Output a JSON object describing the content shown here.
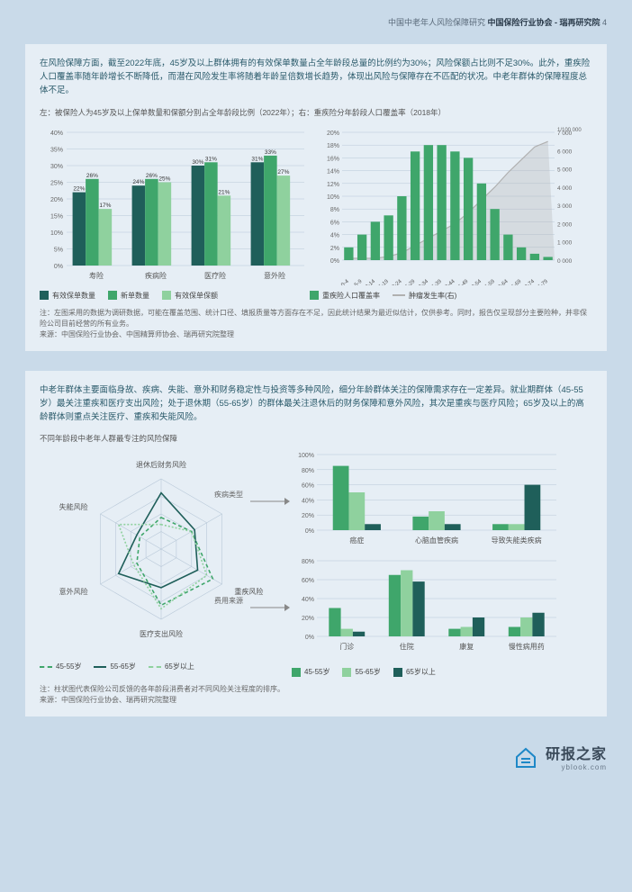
{
  "header": {
    "breadcrumb": "中国中老年人风险保障研究",
    "org": "中国保险行业协会 - 瑞再研究院",
    "pageNo": "4"
  },
  "panel1": {
    "intro": "在风险保障方面，截至2022年底，45岁及以上群体拥有的有效保单数量占全年龄段总量的比例约为30%；风险保额占比则不足30%。此外，重疾险人口覆盖率随年龄增长不断降低，而潜在风险发生率将随着年龄呈倍数增长趋势，体现出风险与保障存在不匹配的状况。中老年群体的保障程度总体不足。",
    "subtitle": "左：被保险人为45岁及以上保单数量和保额分别占全年龄段比例（2022年）；右：重疾险分年龄段人口覆盖率（2018年）",
    "barChart": {
      "type": "grouped-bar",
      "categories": [
        "寿险",
        "疾病险",
        "医疗险",
        "意外险"
      ],
      "series": [
        {
          "name": "有效保单数量",
          "color": "#1f5f5a",
          "values": [
            22,
            24,
            30,
            31
          ]
        },
        {
          "name": "新单数量",
          "color": "#3fa66b",
          "values": [
            26,
            26,
            31,
            33
          ]
        },
        {
          "name": "有效保单保额",
          "color": "#8fd19e",
          "values": [
            17,
            25,
            21,
            27
          ]
        }
      ],
      "ylim": [
        0,
        40
      ],
      "ytick_step": 5,
      "ysuffix": "%",
      "label_fontsize": 7,
      "grid_color": "#b8c8d8",
      "background": "#e6eef5",
      "data_labels_color": "#333",
      "bar_width": 0.22
    },
    "lineBarChart": {
      "type": "bar-with-line",
      "categories": [
        "0-4",
        "5-9",
        "10-14",
        "15-19",
        "20-24",
        "25-29",
        "30-34",
        "35-39",
        "40-44",
        "45-49",
        "50-54",
        "55-59",
        "60-64",
        "65-69",
        "70-74",
        "75-79"
      ],
      "bar": {
        "name": "重疾险人口覆盖率",
        "color": "#3fa66b",
        "values": [
          2,
          4,
          6,
          7,
          10,
          17,
          18,
          18,
          17,
          16,
          12,
          8,
          4,
          2,
          1,
          0.5
        ],
        "axis": "left"
      },
      "line": {
        "name": "肿瘤发生率(右)",
        "color": "#b0b0b0",
        "values": [
          100,
          100,
          100,
          200,
          400,
          800,
          1200,
          1600,
          2000,
          2600,
          3300,
          4000,
          4800,
          5500,
          6200,
          6500
        ],
        "axis": "right",
        "fill_opacity": 0.3
      },
      "y_left": {
        "lim": [
          0,
          20
        ],
        "step": 2,
        "suffix": "%"
      },
      "y_right": {
        "lim": [
          0,
          7000
        ],
        "step": 1000,
        "unit": "1/100 000"
      },
      "grid_color": "#b8c8d8"
    },
    "legend1": [
      "有效保单数量",
      "新单数量",
      "有效保单保额"
    ],
    "legend2": [
      "重疾险人口覆盖率",
      "肿瘤发生率(右)"
    ],
    "note1": "注：左图采用的数据为调研数据，可能在覆盖范围、统计口径、填报质量等方面存在不足，因此统计结果为最近似估计，仅供参考。同时，报告仅呈现部分主要险种，并非保险公司目前经营的所有业务。",
    "note2": "来源：中国保险行业协会、中国精算师协会、瑞再研究院整理"
  },
  "panel2": {
    "intro": "中老年群体主要面临身故、疾病、失能、意外和财务稳定性与投资等多种风险，细分年龄群体关注的保障需求存在一定差异。就业期群体（45-55岁）最关注重疾和医疗支出风险；处于退休期（55-65岁）的群体最关注退休后的财务保障和意外风险，其次是重疾与医疗风险；65岁及以上的高龄群体则重点关注医疗、重疾和失能风险。",
    "subtitle": "不同年龄段中老年人群最专注的风险保障",
    "radar": {
      "type": "radar",
      "axes": [
        "退休后财务风险",
        "疾病类型",
        "重疾风险",
        "医疗支出风险",
        "意外风险",
        "失能风险"
      ],
      "axes_display": [
        "退休后财务风险",
        "",
        "重疾风险",
        "医疗支出风险",
        "意外风险",
        "失能风险"
      ],
      "series": [
        {
          "name": "45-55岁",
          "color": "#3fa66b",
          "dash": "4 3",
          "values": [
            0.45,
            0.5,
            0.85,
            0.8,
            0.4,
            0.35
          ]
        },
        {
          "name": "55-65岁",
          "color": "#1f5f5a",
          "dash": "none",
          "values": [
            0.8,
            0.55,
            0.6,
            0.55,
            0.7,
            0.4
          ]
        },
        {
          "name": "65岁以上",
          "color": "#8fd19e",
          "dash": "2 2",
          "values": [
            0.35,
            0.5,
            0.75,
            0.85,
            0.45,
            0.7
          ]
        }
      ],
      "ring_color": "#b8c8d8",
      "font_size": 8
    },
    "arrows": {
      "label1": "疾病类型",
      "label2": "费用来源"
    },
    "smallChart1": {
      "type": "grouped-bar",
      "categories": [
        "癌症",
        "心脑血管疾病",
        "导致失能类疾病"
      ],
      "series_colors": [
        "#3fa66b",
        "#8fd19e",
        "#1f5f5a"
      ],
      "series_names": [
        "45-55岁",
        "55-65岁",
        "65岁以上"
      ],
      "values": [
        [
          85,
          50,
          8
        ],
        [
          18,
          25,
          8
        ],
        [
          8,
          8,
          60
        ]
      ],
      "ylim": [
        0,
        100
      ],
      "ytick_step": 20,
      "ysuffix": "%",
      "grid_color": "#b8c8d8"
    },
    "smallChart2": {
      "type": "grouped-bar",
      "categories": [
        "门诊",
        "住院",
        "康复",
        "慢性病用药"
      ],
      "series_colors": [
        "#3fa66b",
        "#8fd19e",
        "#1f5f5a"
      ],
      "values": [
        [
          30,
          8,
          5
        ],
        [
          65,
          70,
          58
        ],
        [
          8,
          10,
          20
        ],
        [
          10,
          20,
          25
        ]
      ],
      "ylim": [
        0,
        80
      ],
      "ytick_step": 20,
      "ysuffix": "%",
      "grid_color": "#b8c8d8"
    },
    "legend": [
      "45-55岁",
      "55-65岁",
      "65岁以上"
    ],
    "note1": "注：柱状图代表保险公司反馈的各年龄段消费者对不同风险关注程度的排序。",
    "note2": "来源：中国保险行业协会、瑞再研究院整理"
  },
  "watermark": {
    "cn": "研报之家",
    "en": "yblook.com"
  }
}
